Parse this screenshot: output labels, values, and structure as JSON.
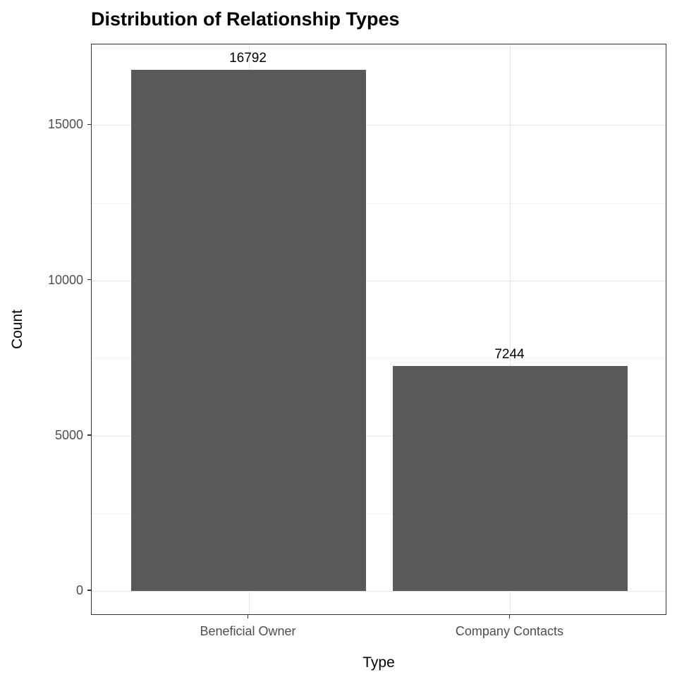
{
  "chart_data": {
    "type": "bar",
    "title": "Distribution of Relationship Types",
    "xlabel": "Type",
    "ylabel": "Count",
    "categories": [
      "Beneficial Owner",
      "Company Contacts"
    ],
    "values": [
      16792,
      7244
    ],
    "value_labels": [
      "16792",
      "7244"
    ],
    "ylim": [
      0,
      17600
    ],
    "yticks": [
      0,
      5000,
      10000,
      15000
    ],
    "ytick_labels": [
      "0",
      "5000",
      "10000",
      "15000"
    ],
    "yticks_minor": [
      2500,
      7500,
      12500,
      17500
    ],
    "grid": "major and minor horizontal, major vertical at category centers",
    "legend": "none",
    "colors": {
      "bar_fill": "#595959",
      "panel_border": "#333333",
      "grid_major": "#e4e4e4",
      "grid_minor": "#f2f2f2",
      "tick_text": "#4d4d4d",
      "axis_title_text": "#000000",
      "title_text": "#000000",
      "background": "#ffffff"
    }
  }
}
